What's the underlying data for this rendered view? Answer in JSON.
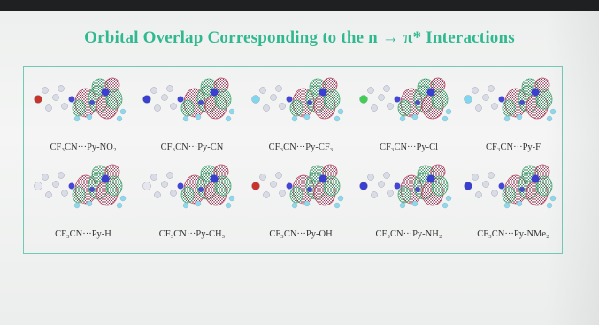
{
  "title": "Orbital Overlap Corresponding to the n → π* Interactions",
  "colors": {
    "title": "#30b98f",
    "frame": "#6fcbb7",
    "lobe_red": "#b23a5c",
    "lobe_green": "#3aa36c",
    "atom_blue": "#3a3fd0"
  },
  "rows": [
    {
      "items": [
        {
          "label": "CF₃CN···Py-NO₂",
          "substituent_atom": "red"
        },
        {
          "label": "CF₃CN···Py-CN",
          "substituent_atom": "blue"
        },
        {
          "label": "CF₃CN···Py-CF₃",
          "substituent_atom": "cyan"
        },
        {
          "label": "CF₃CN···Py-Cl",
          "substituent_atom": "green"
        },
        {
          "label": "CF₃CN···Py-F",
          "substituent_atom": "cyan"
        }
      ]
    },
    {
      "items": [
        {
          "label": "CF₃CN···Py-H",
          "substituent_atom": "white"
        },
        {
          "label": "CF₃CN···Py-CH₃",
          "substituent_atom": "white"
        },
        {
          "label": "CF₃CN···Py-OH",
          "substituent_atom": "red"
        },
        {
          "label": "CF₃CN···Py-NH₂",
          "substituent_atom": "blue"
        },
        {
          "label": "CF₃CN···Py-NMe₂",
          "substituent_atom": "blue"
        }
      ]
    }
  ]
}
